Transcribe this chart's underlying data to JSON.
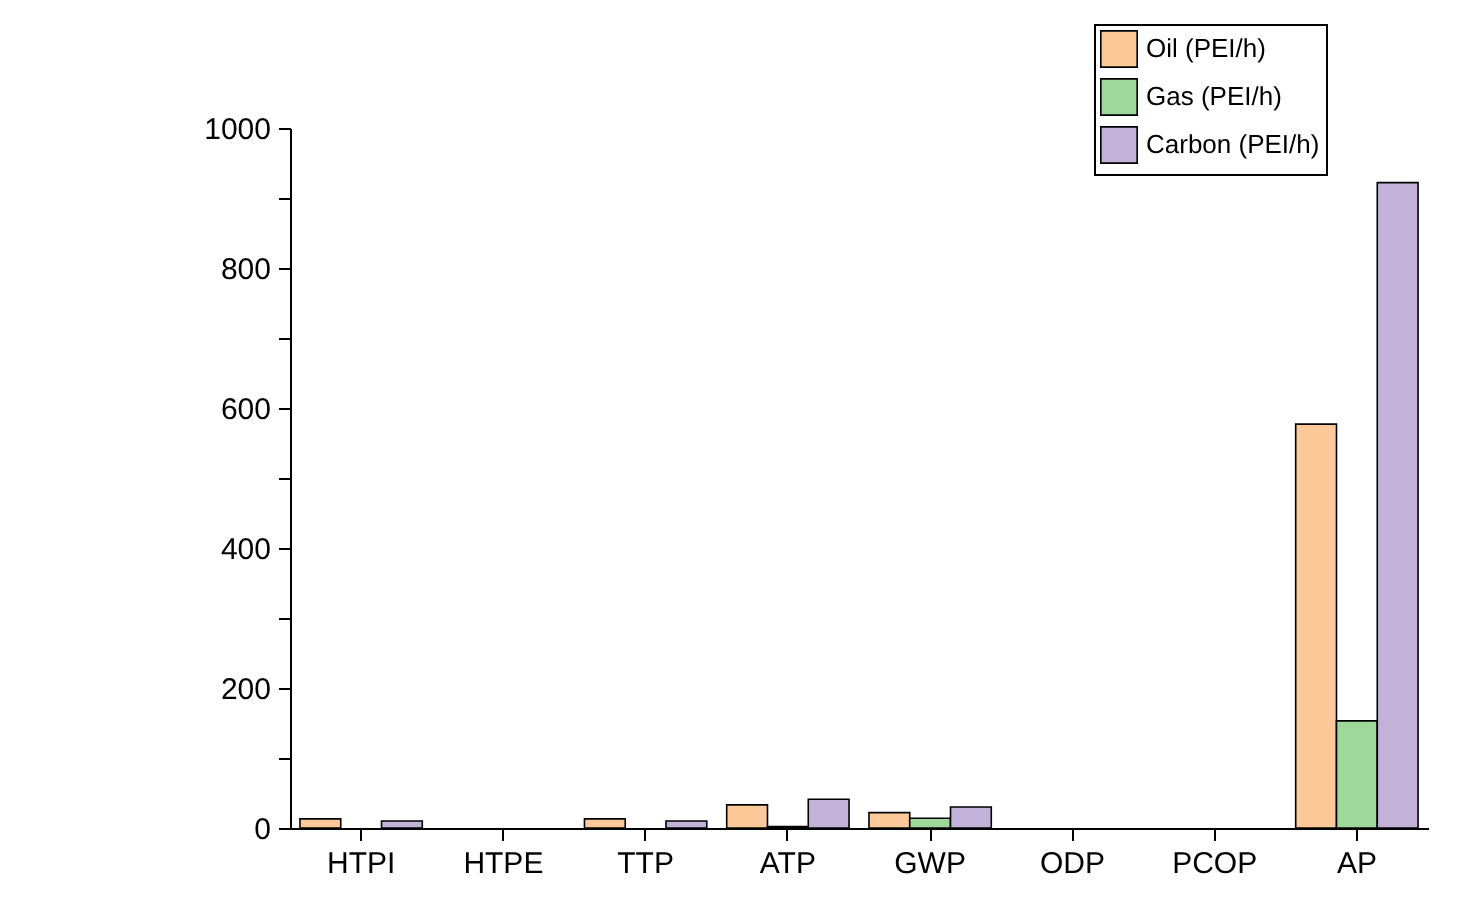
{
  "chart_data": {
    "type": "bar",
    "categories": [
      "HTPI",
      "HTPE",
      "TTP",
      "ATP",
      "GWP",
      "ODP",
      "PCOP",
      "AP"
    ],
    "series": [
      {
        "name": "Oil (PEI/h)",
        "color": "#fdc998",
        "values": [
          13,
          0,
          13,
          33,
          22,
          0,
          0,
          577
        ]
      },
      {
        "name": "Gas (PEI/h)",
        "color": "#9ed89b",
        "values": [
          0,
          0,
          0,
          2,
          14,
          0,
          0,
          153
        ]
      },
      {
        "name": "Carbon (PEI/h)",
        "color": "#c2b1d8",
        "values": [
          10,
          0,
          10,
          41,
          30,
          0,
          0,
          922
        ]
      }
    ],
    "ylim": [
      0,
      1000
    ],
    "yticks": [
      0,
      {
        "value": 100,
        "label": null
      },
      200,
      {
        "value": 300,
        "label": null
      },
      400,
      {
        "value": 500,
        "label": null
      },
      600,
      {
        "value": 700,
        "label": null
      },
      800,
      {
        "value": 900,
        "label": null
      },
      1000
    ],
    "grid": false,
    "legend": "top right"
  }
}
